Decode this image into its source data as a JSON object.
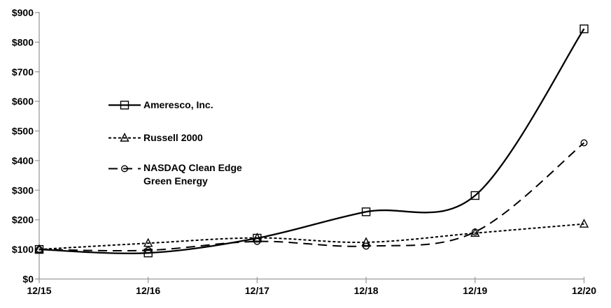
{
  "chart_data": {
    "type": "line",
    "categories": [
      "12/15",
      "12/16",
      "12/17",
      "12/18",
      "12/19",
      "12/20"
    ],
    "series": [
      {
        "name": "Ameresco, Inc.",
        "values": [
          100,
          88,
          138,
          227,
          282,
          845
        ],
        "line_style": "solid",
        "marker": "square",
        "color": "#000000"
      },
      {
        "name": "Russell 2000",
        "values": [
          100,
          121,
          139,
          124,
          155,
          186
        ],
        "line_style": "dotted",
        "marker": "triangle",
        "color": "#000000"
      },
      {
        "name": "NASDAQ Clean Edge Green Energy",
        "values": [
          100,
          97,
          127,
          111,
          159,
          460
        ],
        "line_style": "long-dash",
        "marker": "circle",
        "color": "#000000"
      }
    ],
    "y_ticks": [
      "$0",
      "$100",
      "$200",
      "$300",
      "$400",
      "$500",
      "$600",
      "$700",
      "$800",
      "$900"
    ],
    "ylim": [
      0,
      900
    ],
    "y_tick_step": 100,
    "grid": false,
    "legend_position": "inside-upper-left",
    "axis_color": "#9c9c9c",
    "text_color": "#000000",
    "background": "#ffffff"
  }
}
